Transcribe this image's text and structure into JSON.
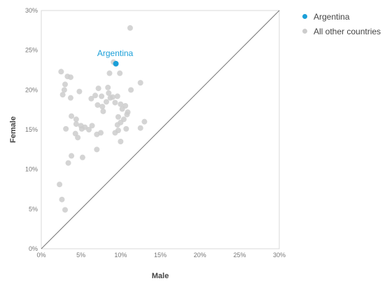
{
  "chart_data": {
    "type": "scatter",
    "xlabel": "Male",
    "ylabel": "Female",
    "xlim": [
      0,
      30
    ],
    "ylim": [
      0,
      30
    ],
    "x_ticks": [
      "0%",
      "5%",
      "10%",
      "15%",
      "20%",
      "25%",
      "30%"
    ],
    "y_ticks": [
      "0%",
      "5%",
      "10%",
      "15%",
      "20%",
      "25%",
      "30%"
    ],
    "tick_values": [
      0,
      5,
      10,
      15,
      20,
      25,
      30
    ],
    "reference_line": "y = x",
    "grid": false,
    "legend_position": "top-right",
    "highlight": {
      "name": "Argentina",
      "label": "Argentina",
      "color": "#1a9fd8",
      "x": 9.4,
      "y": 23.3
    },
    "others": {
      "name": "All other countries",
      "color": "#cccccc",
      "points": [
        [
          11.2,
          27.8
        ],
        [
          9.1,
          23.5
        ],
        [
          9.4,
          23.3
        ],
        [
          2.5,
          22.3
        ],
        [
          3.3,
          21.7
        ],
        [
          3.7,
          21.6
        ],
        [
          8.6,
          22.1
        ],
        [
          9.9,
          22.1
        ],
        [
          12.5,
          20.9
        ],
        [
          3.0,
          20.7
        ],
        [
          2.9,
          20.0
        ],
        [
          4.8,
          19.8
        ],
        [
          2.7,
          19.4
        ],
        [
          7.2,
          20.2
        ],
        [
          8.4,
          20.3
        ],
        [
          8.5,
          19.6
        ],
        [
          11.3,
          20.0
        ],
        [
          3.7,
          19.0
        ],
        [
          6.3,
          18.9
        ],
        [
          6.8,
          19.3
        ],
        [
          7.6,
          19.2
        ],
        [
          8.7,
          19.0
        ],
        [
          9.0,
          19.1
        ],
        [
          9.6,
          19.2
        ],
        [
          9.3,
          18.4
        ],
        [
          8.2,
          18.5
        ],
        [
          7.1,
          18.1
        ],
        [
          7.7,
          17.9
        ],
        [
          10.0,
          18.2
        ],
        [
          10.6,
          18.0
        ],
        [
          10.2,
          17.6
        ],
        [
          7.8,
          17.3
        ],
        [
          10.9,
          17.2
        ],
        [
          10.8,
          16.9
        ],
        [
          3.8,
          16.7
        ],
        [
          4.4,
          16.3
        ],
        [
          9.7,
          16.6
        ],
        [
          10.4,
          16.3
        ],
        [
          4.4,
          15.7
        ],
        [
          10.0,
          15.9
        ],
        [
          9.6,
          15.6
        ],
        [
          13.0,
          16.0
        ],
        [
          5.0,
          15.5
        ],
        [
          5.5,
          15.3
        ],
        [
          6.4,
          15.5
        ],
        [
          5.1,
          15.1
        ],
        [
          6.0,
          15.0
        ],
        [
          10.7,
          15.1
        ],
        [
          12.5,
          15.2
        ],
        [
          3.1,
          15.1
        ],
        [
          9.7,
          14.9
        ],
        [
          9.3,
          14.6
        ],
        [
          4.3,
          14.5
        ],
        [
          7.5,
          14.6
        ],
        [
          7.0,
          14.4
        ],
        [
          4.6,
          14.0
        ],
        [
          10.0,
          13.5
        ],
        [
          7.0,
          12.5
        ],
        [
          3.8,
          11.7
        ],
        [
          5.2,
          11.5
        ],
        [
          3.4,
          10.8
        ],
        [
          2.3,
          8.1
        ],
        [
          2.6,
          6.2
        ],
        [
          3.0,
          4.9
        ]
      ]
    }
  }
}
